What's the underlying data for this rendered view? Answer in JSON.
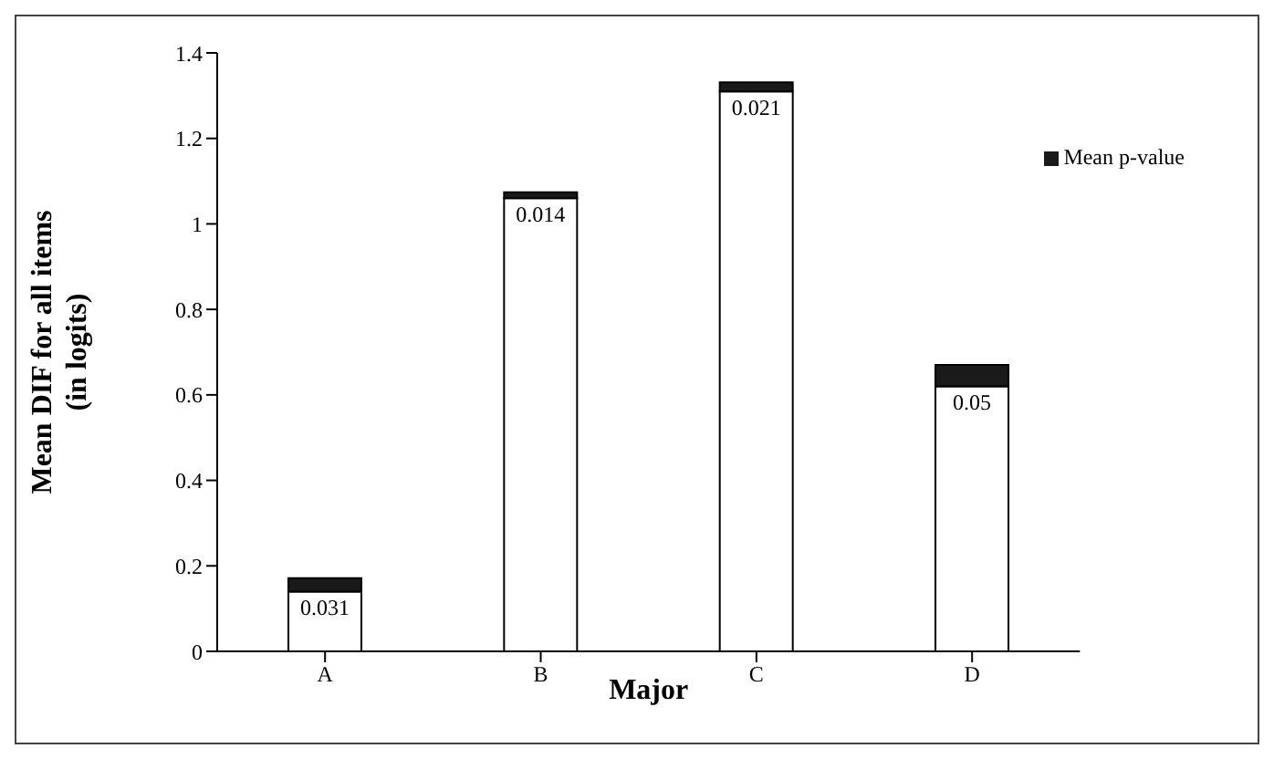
{
  "chart_data": {
    "type": "bar",
    "stacked": true,
    "xlabel": "Major",
    "ylabel": "Mean DIF for all items (in logits)",
    "categories": [
      "A",
      "B",
      "C",
      "D"
    ],
    "series": [
      {
        "color": "#ffffff",
        "values": [
          0.14,
          1.06,
          1.31,
          0.62
        ]
      },
      {
        "name": "Mean p-value",
        "color": "#1a1a1a",
        "values": [
          0.031,
          0.014,
          0.021,
          0.05
        ],
        "value_labels": [
          "0.031",
          "0.014",
          "0.021",
          "0.05"
        ]
      }
    ],
    "ylim": [
      0,
      1.4
    ],
    "yticks": [
      0,
      0.2,
      0.4,
      0.6,
      0.8,
      1,
      1.2,
      1.4
    ],
    "grid": false,
    "legend": "top right"
  }
}
